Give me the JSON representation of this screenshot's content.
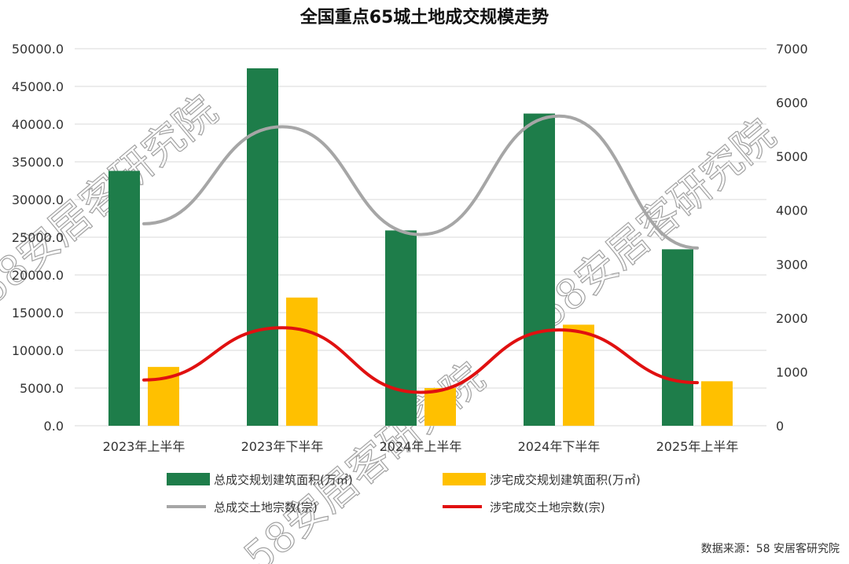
{
  "chart_data": {
    "type": "bar",
    "title": "全国重点65城土地成交规模走势",
    "categories": [
      "2023年上半年",
      "2023年下半年",
      "2024年上半年",
      "2024年下半年",
      "2025年上半年"
    ],
    "y_left": {
      "ylim": [
        0,
        50000
      ],
      "ticks": [
        "0.0",
        "5000.0",
        "10000.0",
        "15000.0",
        "20000.0",
        "25000.0",
        "30000.0",
        "35000.0",
        "40000.0",
        "45000.0",
        "50000.0"
      ]
    },
    "y_right": {
      "ylim": [
        0,
        7000
      ],
      "ticks": [
        "0",
        "1000",
        "2000",
        "3000",
        "4000",
        "5000",
        "6000",
        "7000"
      ]
    },
    "series": [
      {
        "name": "总成交规划建筑面积(万㎡)",
        "kind": "bar",
        "axis": "left",
        "color": "#1e7d4a",
        "values": [
          33800,
          47400,
          25900,
          41400,
          23400
        ]
      },
      {
        "name": "涉宅成交规划建筑面积(万㎡)",
        "kind": "bar",
        "axis": "left",
        "color": "#ffc000",
        "values": [
          7800,
          17000,
          5000,
          13400,
          5900
        ]
      },
      {
        "name": "总成交土地宗数(宗)",
        "kind": "line",
        "axis": "right",
        "color": "#a6a6a6",
        "values": [
          3750,
          5550,
          3550,
          5750,
          3300
        ]
      },
      {
        "name": "涉宅成交土地宗数(宗)",
        "kind": "line",
        "axis": "right",
        "color": "#e01010",
        "values": [
          850,
          1820,
          620,
          1780,
          800
        ]
      }
    ],
    "grid": true,
    "legend": "bottom"
  },
  "source": "数据来源：58 安居客研究院",
  "watermark": "58安居客研究院"
}
